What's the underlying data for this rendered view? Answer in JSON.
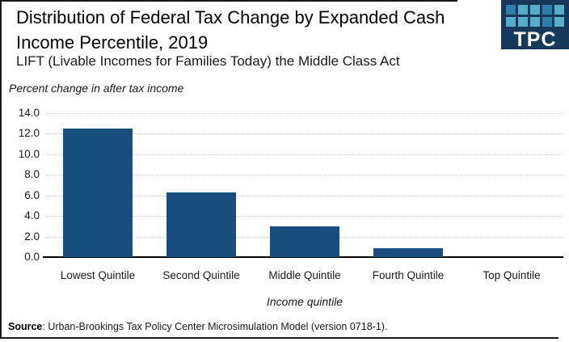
{
  "header": {
    "title": "Distribution of Federal Tax Change by Expanded Cash Income Percentile, 2019",
    "subtitle": "LIFT (Livable Incomes for Families Today) the Middle Class Act"
  },
  "logo": {
    "text": "TPC",
    "bg_color": "#16395B",
    "square_colors": {
      "light": "#56ADC8",
      "medium": "#2D7EA9"
    },
    "grid": [
      [
        "medium",
        "light",
        "light",
        "medium",
        "light"
      ],
      [
        "light",
        "light",
        "light",
        "medium",
        "light"
      ]
    ]
  },
  "chart_data": {
    "type": "bar",
    "title": "Percent change in after tax income",
    "categories": [
      "Lowest Quintile",
      "Second Quintile",
      "Middle Quintile",
      "Fourth Quintile",
      "Top Quintile"
    ],
    "values": [
      12.5,
      6.3,
      3.0,
      0.9,
      0.0
    ],
    "xlabel": "Income quintile",
    "ylabel": "Percent change in after tax income",
    "ylim": [
      0,
      14
    ],
    "yticks": [
      14.0,
      12.0,
      10.0,
      8.0,
      6.0,
      4.0,
      2.0,
      0.0
    ],
    "ytick_labels": [
      "14.0",
      "12.0",
      "10.0",
      "8.0",
      "6.0",
      "4.0",
      "2.0",
      "0.0"
    ],
    "bar_color": "#174E7E",
    "gridline_style": "dotted",
    "gridline_color": "#cfcfcf",
    "legend": "none"
  },
  "footer": {
    "source_label": "Source",
    "source_text": ": Urban-Brookings Tax Policy Center Microsimulation Model (version 0718-1)."
  }
}
